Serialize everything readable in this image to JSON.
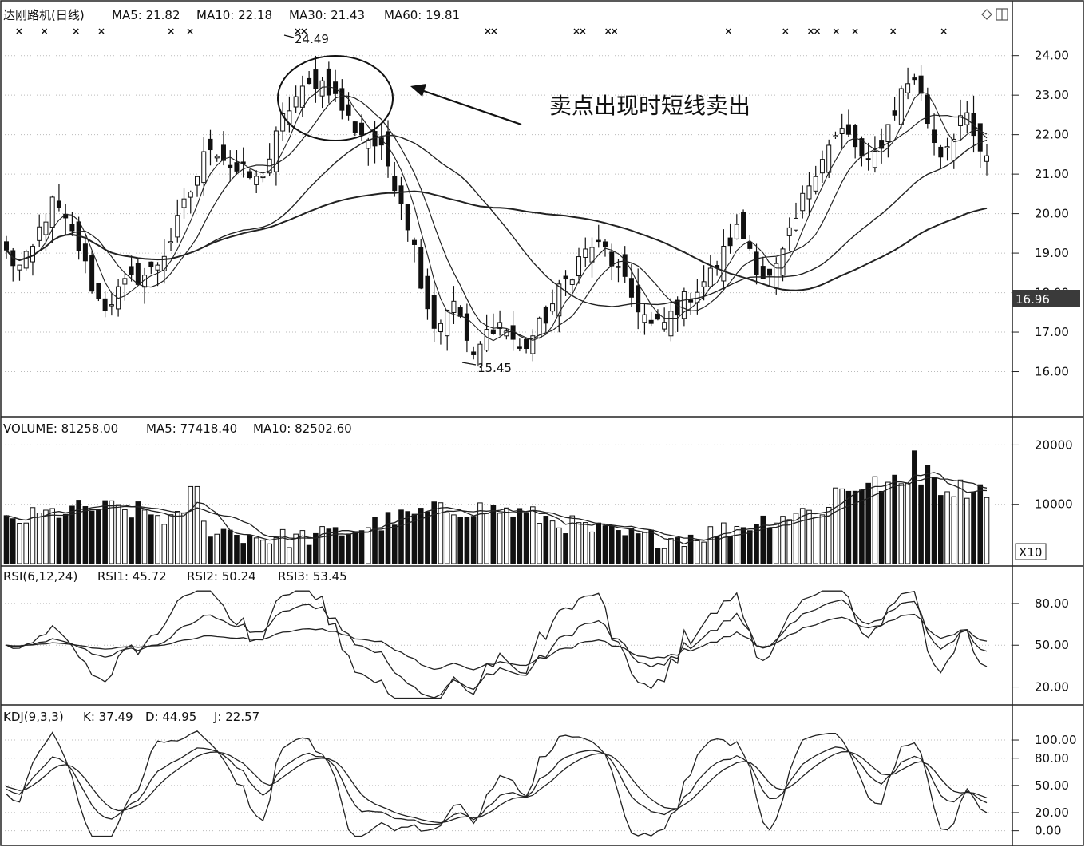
{
  "window": {
    "corner_icons": [
      "diamond-icon",
      "panel-toggle-icon"
    ]
  },
  "chart_data": [
    {
      "type": "candlestick",
      "panel": "price",
      "title": "达刚路机(日线)",
      "indicators": [
        {
          "name": "MA5",
          "label": "MA5: 21.82",
          "value": 21.82
        },
        {
          "name": "MA10",
          "label": "MA10: 22.18",
          "value": 22.18
        },
        {
          "name": "MA30",
          "label": "MA30: 21.43",
          "value": 21.43
        },
        {
          "name": "MA60",
          "label": "MA60: 19.81",
          "value": 19.81
        }
      ],
      "y_ticks": [
        "24.00",
        "23.00",
        "22.00",
        "21.00",
        "20.00",
        "19.00",
        "18.00",
        "17.00",
        "16.00"
      ],
      "ylim": [
        15.0,
        24.6
      ],
      "current_price": "16.96",
      "high_label": "24.49",
      "low_label": "15.45",
      "annotation": "卖点出现时短线卖出",
      "close_path": [
        19.0,
        18.6,
        18.9,
        19.8,
        20.3,
        19.7,
        19.2,
        18.3,
        17.6,
        17.9,
        18.2,
        18.4,
        18.5,
        18.9,
        19.5,
        20.3,
        21.0,
        21.8,
        21.5,
        21.1,
        21.0,
        20.8,
        21.4,
        22.3,
        22.9,
        23.1,
        23.4,
        23.2,
        22.7,
        22.2,
        22.0,
        21.7,
        21.2,
        20.4,
        19.3,
        17.9,
        17.0,
        17.8,
        17.4,
        16.2,
        16.9,
        17.3,
        17.0,
        16.5,
        16.9,
        17.3,
        17.9,
        18.4,
        18.9,
        19.2,
        19.1,
        18.6,
        18.0,
        17.6,
        17.1,
        17.2,
        17.6,
        17.9,
        18.2,
        18.5,
        19.0,
        19.6,
        19.3,
        18.5,
        18.3,
        19.0,
        19.8,
        20.7,
        21.4,
        21.8,
        22.1,
        21.7,
        21.1,
        21.7,
        22.4,
        23.2,
        23.5,
        22.4,
        21.5,
        21.9,
        22.6,
        21.8,
        21.3
      ],
      "ma_lines": [
        "MA5",
        "MA10",
        "MA30",
        "MA60"
      ]
    },
    {
      "type": "bar",
      "panel": "volume",
      "title": "VOLUME",
      "indicators": [
        {
          "name": "VOLUME",
          "label": "VOLUME: 81258.00",
          "value": 81258.0
        },
        {
          "name": "MA5",
          "label": "MA5: 77418.40",
          "value": 77418.4
        },
        {
          "name": "MA10",
          "label": "MA10: 82502.60",
          "value": 82502.6
        }
      ],
      "y_ticks": [
        "20000",
        "10000"
      ],
      "ylim": [
        0,
        21000
      ],
      "unit_label": "X10"
    },
    {
      "type": "line",
      "panel": "rsi",
      "title": "RSI(6,12,24)",
      "indicators": [
        {
          "name": "RSI1",
          "label": "RSI1: 45.72",
          "value": 45.72
        },
        {
          "name": "RSI2",
          "label": "RSI2: 50.24",
          "value": 50.24
        },
        {
          "name": "RSI3",
          "label": "RSI3: 53.45",
          "value": 53.45
        }
      ],
      "y_ticks": [
        "80.00",
        "50.00",
        "20.00"
      ],
      "ylim": [
        10,
        92
      ]
    },
    {
      "type": "line",
      "panel": "kdj",
      "title": "KDJ(9,3,3)",
      "indicators": [
        {
          "name": "K",
          "label": "K: 37.49",
          "value": 37.49
        },
        {
          "name": "D",
          "label": "D: 44.95",
          "value": 44.95
        },
        {
          "name": "J",
          "label": "J: 22.57",
          "value": 22.57
        }
      ],
      "y_ticks": [
        "100.00",
        "80.00",
        "50.00",
        "20.00",
        "0.00"
      ],
      "ylim": [
        -10,
        115
      ]
    }
  ]
}
